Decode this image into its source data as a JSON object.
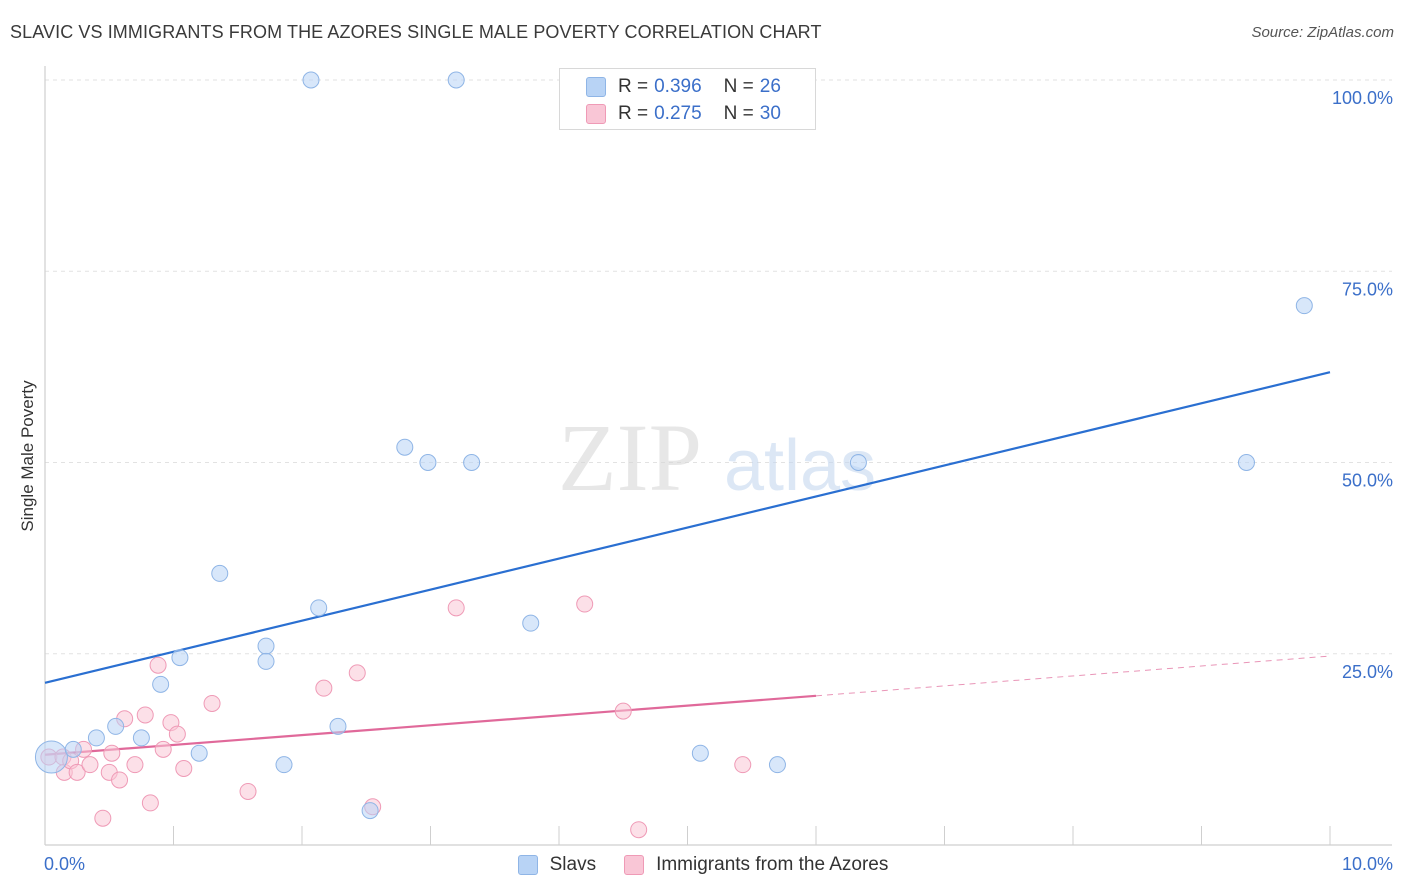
{
  "title": "SLAVIC VS IMMIGRANTS FROM THE AZORES SINGLE MALE POVERTY CORRELATION CHART",
  "source": "Source: ZipAtlas.com",
  "watermark": {
    "zip": "ZIP",
    "atlas": "atlas"
  },
  "legend_top": {
    "rows": [
      {
        "r_label": "R =",
        "r_value": "0.396",
        "n_label": "N =",
        "n_value": "26"
      },
      {
        "r_label": "R =",
        "r_value": "0.275",
        "n_label": "N =",
        "n_value": "30"
      }
    ]
  },
  "colors": {
    "slavs_fill": "#b8d3f5",
    "slavs_stroke": "#8fb5e6",
    "slavs_line": "#2a6fd1",
    "azores_fill": "#f9c6d6",
    "azores_stroke": "#ef9ab6",
    "azores_line": "#e0699a",
    "tick_label": "#3b6fc9"
  },
  "chart_data": {
    "type": "scatter",
    "title": "SLAVIC VS IMMIGRANTS FROM THE AZORES SINGLE MALE POVERTY CORRELATION CHART",
    "xlabel": "",
    "ylabel": "Single Male Poverty",
    "xlim": [
      0,
      10
    ],
    "ylim": [
      0,
      100
    ],
    "x_tick_labels": [
      "0.0%",
      "10.0%"
    ],
    "y_ticks": [
      25,
      50,
      75,
      100
    ],
    "y_tick_labels": [
      "25.0%",
      "50.0%",
      "75.0%",
      "100.0%"
    ],
    "grid": "horizontal dashed",
    "legend_placement": "bottom",
    "series": [
      {
        "name": "Slavs",
        "r": 0.396,
        "n": 26,
        "points": [
          [
            0.05,
            11.5
          ],
          [
            0.22,
            12.5
          ],
          [
            0.4,
            14
          ],
          [
            0.55,
            15.5
          ],
          [
            0.75,
            14
          ],
          [
            0.9,
            21
          ],
          [
            1.05,
            24.5
          ],
          [
            1.2,
            12
          ],
          [
            1.36,
            35.5
          ],
          [
            1.72,
            26
          ],
          [
            1.72,
            24
          ],
          [
            1.86,
            10.5
          ],
          [
            2.07,
            100
          ],
          [
            2.13,
            31
          ],
          [
            2.28,
            15.5
          ],
          [
            2.53,
            4.5
          ],
          [
            2.8,
            52
          ],
          [
            2.98,
            50
          ],
          [
            3.2,
            100
          ],
          [
            3.32,
            50
          ],
          [
            3.78,
            29
          ],
          [
            5.1,
            12
          ],
          [
            5.7,
            10.5
          ],
          [
            6.33,
            50
          ],
          [
            9.35,
            50
          ],
          [
            9.8,
            70.5
          ]
        ],
        "trend": {
          "x": [
            0,
            10
          ],
          "y": [
            21.2,
            61.8
          ]
        }
      },
      {
        "name": "Immigrants from the Azores",
        "r": 0.275,
        "n": 30,
        "points": [
          [
            0.03,
            11.5
          ],
          [
            0.14,
            11.5
          ],
          [
            0.15,
            9.5
          ],
          [
            0.2,
            11
          ],
          [
            0.25,
            9.5
          ],
          [
            0.3,
            12.5
          ],
          [
            0.35,
            10.5
          ],
          [
            0.45,
            3.5
          ],
          [
            0.5,
            9.5
          ],
          [
            0.52,
            12
          ],
          [
            0.58,
            8.5
          ],
          [
            0.62,
            16.5
          ],
          [
            0.7,
            10.5
          ],
          [
            0.78,
            17
          ],
          [
            0.82,
            5.5
          ],
          [
            0.88,
            23.5
          ],
          [
            0.92,
            12.5
          ],
          [
            0.98,
            16
          ],
          [
            1.03,
            14.5
          ],
          [
            1.08,
            10
          ],
          [
            1.3,
            18.5
          ],
          [
            1.58,
            7
          ],
          [
            2.17,
            20.5
          ],
          [
            2.43,
            22.5
          ],
          [
            2.55,
            5
          ],
          [
            3.2,
            31
          ],
          [
            4.2,
            31.5
          ],
          [
            4.5,
            17.5
          ],
          [
            4.62,
            2
          ],
          [
            5.43,
            10.5
          ]
        ],
        "trend": {
          "x": [
            0,
            6
          ],
          "y": [
            11.8,
            19.5
          ]
        },
        "trend_extension": {
          "x": [
            6,
            10
          ],
          "y": [
            19.5,
            24.7
          ]
        }
      }
    ]
  },
  "bottom_legend": {
    "items": [
      "Slavs",
      "Immigrants from the Azores"
    ]
  }
}
